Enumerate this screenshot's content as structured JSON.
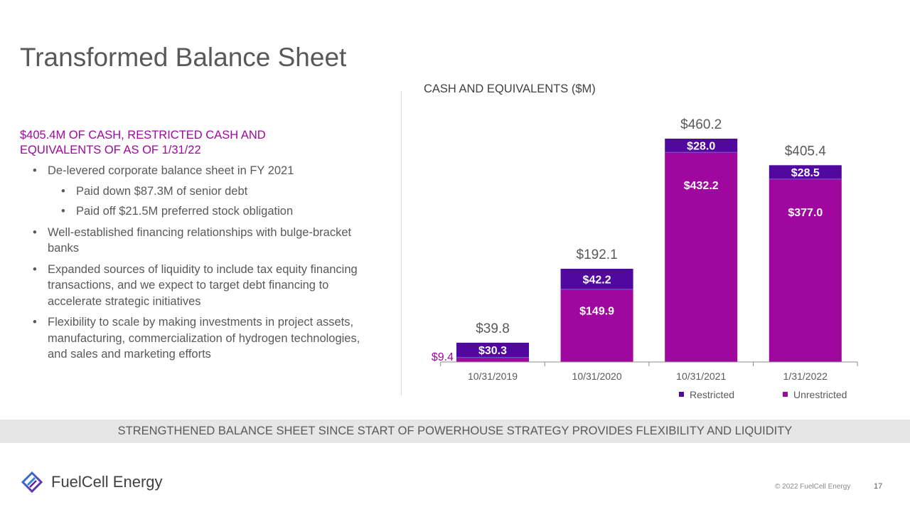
{
  "title": "Transformed Balance Sheet",
  "left": {
    "headline": "$405.4M OF CASH, RESTRICTED CASH AND EQUIVALENTS OF AS OF 1/31/22",
    "bullets": [
      {
        "text": "De-levered corporate balance sheet in FY 2021",
        "level": 1
      },
      {
        "text": "Paid down $87.3M of senior debt",
        "level": 2
      },
      {
        "text": "Paid off $21.5M preferred stock obligation",
        "level": 2
      },
      {
        "text": "Well-established financing relationships with bulge-bracket banks",
        "level": 1
      },
      {
        "text": "Expanded sources of liquidity to include tax equity financing transactions, and we expect to target debt financing to accelerate strategic initiatives",
        "level": 1
      },
      {
        "text": "Flexibility to scale by making investments in project assets, manufacturing, commercialization of hydrogen technologies, and sales and marketing efforts",
        "level": 1
      }
    ]
  },
  "banner": "STRENGTHENED BALANCE SHEET SINCE START OF POWERHOUSE STRATEGY PROVIDES FLEXIBILITY AND LIQUIDITY",
  "footer": {
    "logo_text": "FuelCell Energy",
    "copyright": "© 2022 FuelCell Energy",
    "page_number": "17"
  },
  "chart_data": {
    "type": "bar",
    "stacked": true,
    "title": "CASH AND EQUIVALENTS ($M)",
    "categories": [
      "10/31/2019",
      "10/31/2020",
      "10/31/2021",
      "1/31/2022"
    ],
    "series": [
      {
        "name": "Unrestricted",
        "values": [
          9.4,
          149.9,
          432.2,
          377.0
        ],
        "labels": [
          "$9.4",
          "$149.9",
          "$432.2",
          "$377.0"
        ],
        "color": "#A0079F"
      },
      {
        "name": "Restricted",
        "values": [
          30.3,
          42.2,
          28.0,
          28.5
        ],
        "labels": [
          "$30.3",
          "$42.2",
          "$28.0",
          "$28.5"
        ],
        "color": "#51089E"
      }
    ],
    "totals": [
      "$39.8",
      "$192.1",
      "$460.2",
      "$405.4"
    ],
    "ylim": [
      0,
      460.2
    ],
    "legend_position": "bottom-right",
    "legend": [
      "Restricted",
      "Unrestricted"
    ]
  }
}
